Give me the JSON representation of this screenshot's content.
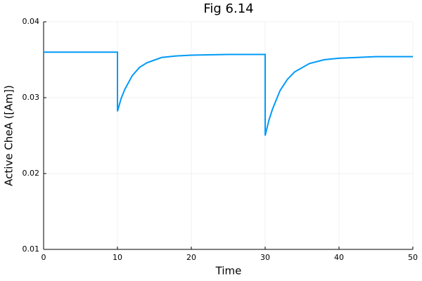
{
  "chart_data": {
    "type": "line",
    "title": "Fig 6.14",
    "x_label": "Time",
    "y_label": "Active CheA ([Am])",
    "x": [
      0,
      10,
      10,
      10.5,
      11,
      12,
      13,
      14,
      16,
      18,
      20,
      25,
      30,
      30,
      30.5,
      31,
      32,
      33,
      34,
      36,
      38,
      40,
      45,
      50
    ],
    "series": [
      {
        "color": "#009af9",
        "values": [
          0.036,
          0.036,
          0.0282,
          0.0299,
          0.0311,
          0.0329,
          0.034,
          0.0346,
          0.0353,
          0.0355,
          0.0356,
          0.0357,
          0.0357,
          0.025,
          0.027,
          0.0285,
          0.0309,
          0.0324,
          0.0334,
          0.0345,
          0.035,
          0.0352,
          0.0354,
          0.0354
        ]
      }
    ],
    "xlim": [
      0,
      50
    ],
    "xticks": [
      0,
      10,
      20,
      30,
      40,
      50
    ],
    "ylim": [
      0.01,
      0.04
    ],
    "yticks": [
      0.01,
      0.02,
      0.03,
      0.04
    ],
    "grid": true
  }
}
